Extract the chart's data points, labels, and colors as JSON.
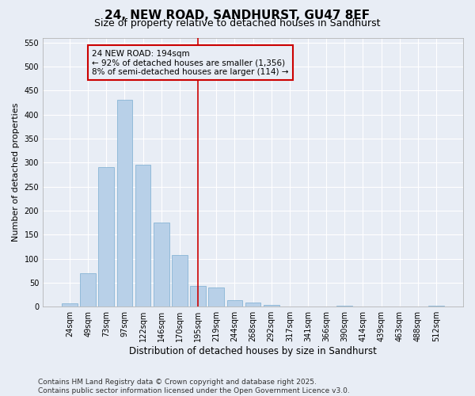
{
  "title": "24, NEW ROAD, SANDHURST, GU47 8EF",
  "subtitle": "Size of property relative to detached houses in Sandhurst",
  "xlabel": "Distribution of detached houses by size in Sandhurst",
  "ylabel": "Number of detached properties",
  "bar_color": "#b8d0e8",
  "bar_edge_color": "#7aadd0",
  "background_color": "#e8edf5",
  "grid_color": "#ffffff",
  "categories": [
    "24sqm",
    "49sqm",
    "73sqm",
    "97sqm",
    "122sqm",
    "146sqm",
    "170sqm",
    "195sqm",
    "219sqm",
    "244sqm",
    "268sqm",
    "292sqm",
    "317sqm",
    "341sqm",
    "366sqm",
    "390sqm",
    "414sqm",
    "439sqm",
    "463sqm",
    "488sqm",
    "512sqm"
  ],
  "values": [
    7,
    70,
    290,
    430,
    295,
    175,
    107,
    43,
    40,
    14,
    8,
    3,
    0,
    0,
    0,
    2,
    0,
    0,
    0,
    0,
    2
  ],
  "vline_x": 7,
  "vline_color": "#cc0000",
  "annotation_text": "24 NEW ROAD: 194sqm\n← 92% of detached houses are smaller (1,356)\n8% of semi-detached houses are larger (114) →",
  "annotation_box_color": "#cc0000",
  "ylim": [
    0,
    560
  ],
  "yticks": [
    0,
    50,
    100,
    150,
    200,
    250,
    300,
    350,
    400,
    450,
    500,
    550
  ],
  "footer": "Contains HM Land Registry data © Crown copyright and database right 2025.\nContains public sector information licensed under the Open Government Licence v3.0.",
  "title_fontsize": 11,
  "subtitle_fontsize": 9,
  "xlabel_fontsize": 8.5,
  "ylabel_fontsize": 8,
  "tick_fontsize": 7,
  "annotation_fontsize": 7.5,
  "footer_fontsize": 6.5
}
